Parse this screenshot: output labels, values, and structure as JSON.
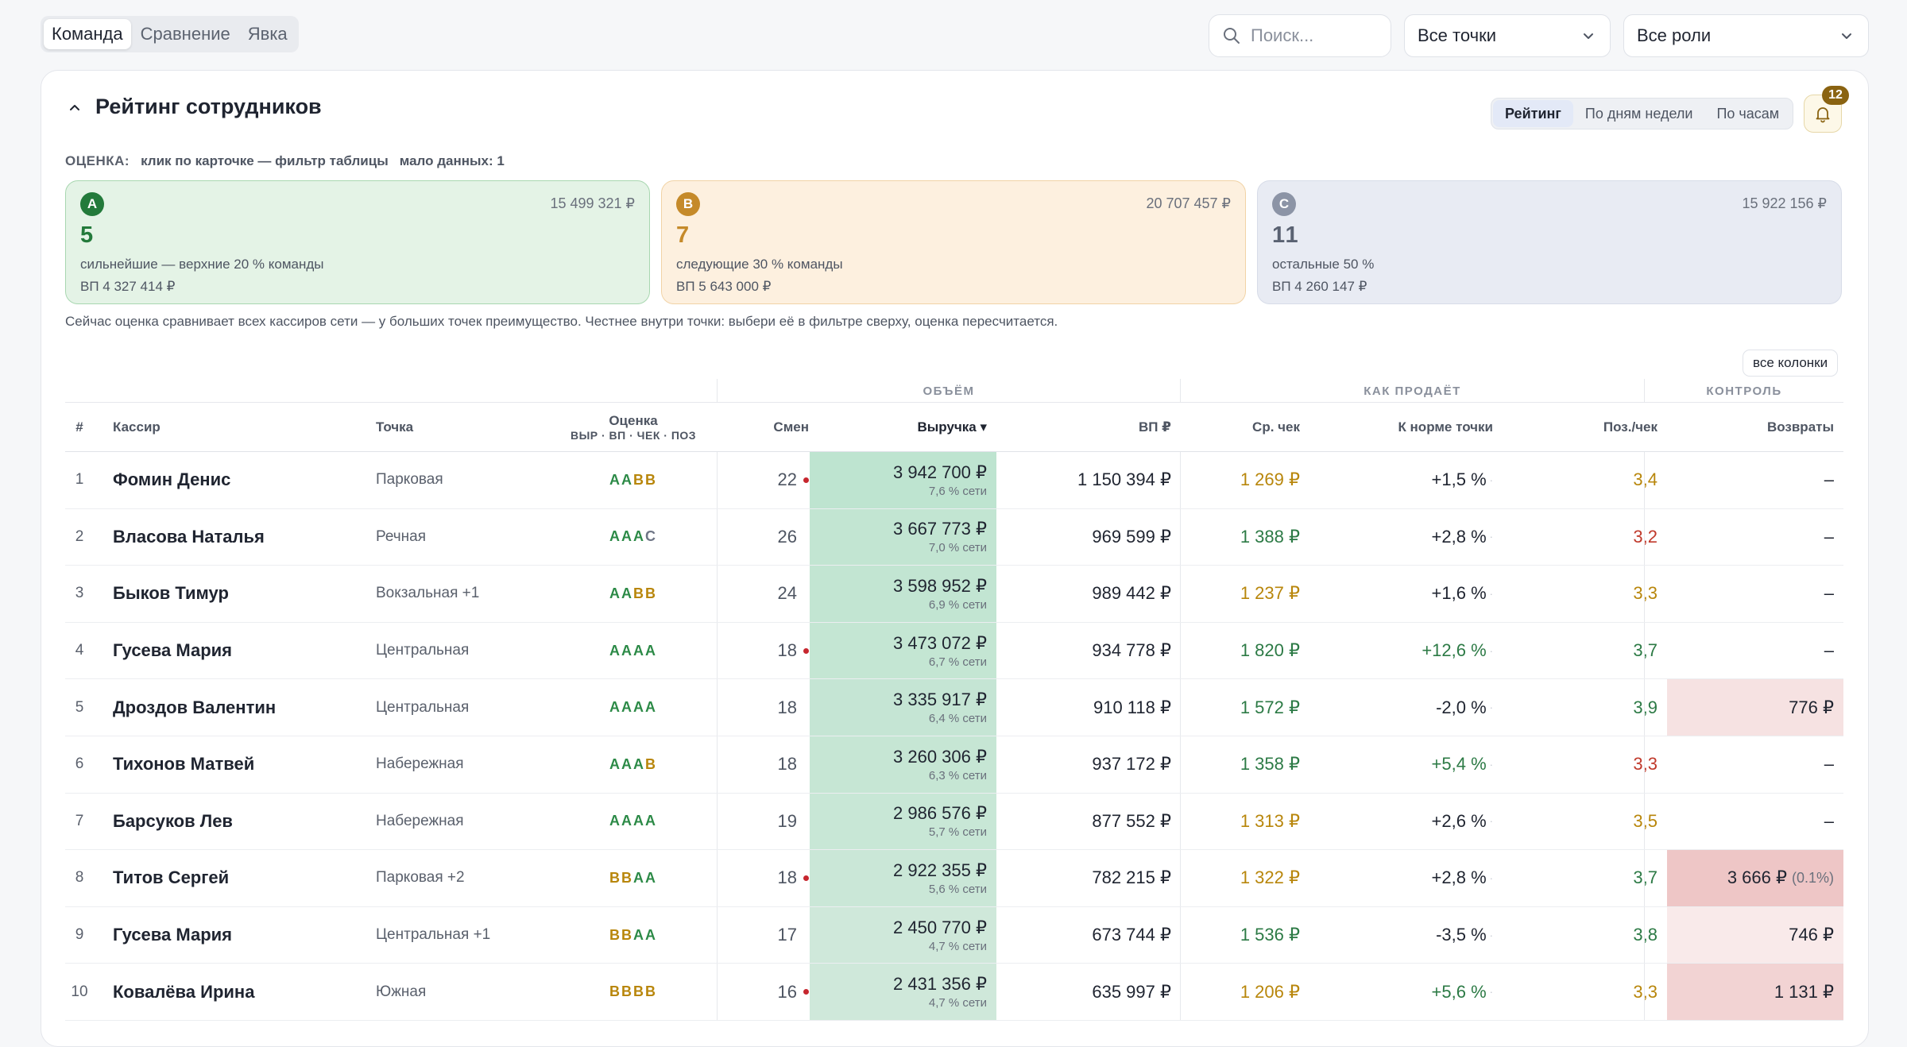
{
  "nav": {
    "tabs": [
      {
        "label": "Команда",
        "active": true
      },
      {
        "label": "Сравнение",
        "active": false
      },
      {
        "label": "Явка",
        "active": false
      }
    ]
  },
  "filters": {
    "search_placeholder": "Поиск...",
    "point_select": "Все точки",
    "role_select": "Все роли"
  },
  "panel": {
    "title": "Рейтинг сотрудников",
    "views": [
      {
        "label": "Рейтинг",
        "active": true
      },
      {
        "label": "По дням недели",
        "active": false
      },
      {
        "label": "По часам",
        "active": false
      }
    ],
    "notifications_count": "12"
  },
  "grading": {
    "label": "ОЦЕНКА:",
    "hint": "клик по карточке — фильтр таблицы",
    "low_data": "мало данных: 1",
    "cards": [
      {
        "letter": "A",
        "sum": "15 499 321 ₽",
        "count": "5",
        "desc": "сильнейшие — верхние 20 % команды",
        "vp": "ВП 4 327 414 ₽"
      },
      {
        "letter": "B",
        "sum": "20 707 457 ₽",
        "count": "7",
        "desc": "следующие 30 % команды",
        "vp": "ВП 5 643 000 ₽"
      },
      {
        "letter": "C",
        "sum": "15 922 156 ₽",
        "count": "11",
        "desc": "остальные 50 %",
        "vp": "ВП 4 260 147 ₽"
      }
    ],
    "note": "Сейчас оценка сравнивает всех кассиров сети — у больших точек преимущество. Честнее внутри точки: выбери её в фильтре сверху, оценка пересчитается."
  },
  "table": {
    "all_columns_label": "все колонки",
    "groups": {
      "volume": "ОБЪЁМ",
      "how_sells": "КАК ПРОДАЁТ",
      "control": "КОНТРОЛЬ"
    },
    "headers": {
      "idx": "#",
      "cashier": "Кассир",
      "point": "Точка",
      "grade": "Оценка",
      "grade_sub": "ВЫР · ВП · ЧЕК · ПОЗ",
      "shifts": "Смен",
      "revenue": "Выручка ▾",
      "vp": "ВП ₽",
      "avg_check": "Ср. чек",
      "to_norm": "К норме точки",
      "pos_per_check": "Поз./чек",
      "returns": "Возвраты"
    },
    "colors": {
      "A": "#2c8a47",
      "B": "#b8860b",
      "C": "#6e7585",
      "good": "#2c7a45",
      "mid": "#b8860b",
      "bad": "#c0392b"
    },
    "rows": [
      {
        "idx": "1",
        "name": "Фомин Денис",
        "point": "Парковая",
        "point_plus": "",
        "grades": [
          "A",
          "A",
          "B",
          "B"
        ],
        "shifts": "22",
        "dot": true,
        "revenue": "3 942 700 ₽",
        "share": "7,6 % сети",
        "rev_level": 1.0,
        "vp": "1 150 394 ₽",
        "avg": "1 269 ₽",
        "avg_tone": "mid",
        "norm": "+1,5 %",
        "norm_tone": "neutral",
        "pos": "3,4",
        "pos_tone": "mid",
        "ret": "–",
        "ret_pct": "",
        "ret_level": 0
      },
      {
        "idx": "2",
        "name": "Власова Наталья",
        "point": "Речная",
        "point_plus": "",
        "grades": [
          "A",
          "A",
          "A",
          "C"
        ],
        "shifts": "26",
        "dot": false,
        "revenue": "3 667 773 ₽",
        "share": "7,0 % сети",
        "rev_level": 0.93,
        "vp": "969 599 ₽",
        "avg": "1 388 ₽",
        "avg_tone": "good",
        "norm": "+2,8 %",
        "norm_tone": "neutral",
        "pos": "3,2",
        "pos_tone": "bad",
        "ret": "–",
        "ret_pct": "",
        "ret_level": 0
      },
      {
        "idx": "3",
        "name": "Быков Тимур",
        "point": "Вокзальная",
        "point_plus": "+1",
        "grades": [
          "A",
          "A",
          "B",
          "B"
        ],
        "shifts": "24",
        "dot": false,
        "revenue": "3 598 952 ₽",
        "share": "6,9 % сети",
        "rev_level": 0.91,
        "vp": "989 442 ₽",
        "avg": "1 237 ₽",
        "avg_tone": "mid",
        "norm": "+1,6 %",
        "norm_tone": "neutral",
        "pos": "3,3",
        "pos_tone": "mid",
        "ret": "–",
        "ret_pct": "",
        "ret_level": 0
      },
      {
        "idx": "4",
        "name": "Гусева Мария",
        "point": "Центральная",
        "point_plus": "",
        "grades": [
          "A",
          "A",
          "A",
          "A"
        ],
        "shifts": "18",
        "dot": true,
        "revenue": "3 473 072 ₽",
        "share": "6,7 % сети",
        "rev_level": 0.88,
        "vp": "934 778 ₽",
        "avg": "1 820 ₽",
        "avg_tone": "good",
        "norm": "+12,6 %",
        "norm_tone": "good",
        "pos": "3,7",
        "pos_tone": "good",
        "ret": "–",
        "ret_pct": "",
        "ret_level": 0
      },
      {
        "idx": "5",
        "name": "Дроздов Валентин",
        "point": "Центральная",
        "point_plus": "",
        "grades": [
          "A",
          "A",
          "A",
          "A"
        ],
        "shifts": "18",
        "dot": false,
        "revenue": "3 335 917 ₽",
        "share": "6,4 % сети",
        "rev_level": 0.85,
        "vp": "910 118 ₽",
        "avg": "1 572 ₽",
        "avg_tone": "good",
        "norm": "-2,0 %",
        "norm_tone": "neutral",
        "pos": "3,9",
        "pos_tone": "good",
        "ret": "776 ₽",
        "ret_pct": "",
        "ret_level": 0.35
      },
      {
        "idx": "6",
        "name": "Тихонов Матвей",
        "point": "Набережная",
        "point_plus": "",
        "grades": [
          "A",
          "A",
          "A",
          "B"
        ],
        "shifts": "18",
        "dot": false,
        "revenue": "3 260 306 ₽",
        "share": "6,3 % сети",
        "rev_level": 0.83,
        "vp": "937 172 ₽",
        "avg": "1 358 ₽",
        "avg_tone": "good",
        "norm": "+5,4 %",
        "norm_tone": "good",
        "pos": "3,3",
        "pos_tone": "bad",
        "ret": "–",
        "ret_pct": "",
        "ret_level": 0
      },
      {
        "idx": "7",
        "name": "Барсуков Лев",
        "point": "Набережная",
        "point_plus": "",
        "grades": [
          "A",
          "A",
          "A",
          "A"
        ],
        "shifts": "19",
        "dot": false,
        "revenue": "2 986 576 ₽",
        "share": "5,7 % сети",
        "rev_level": 0.76,
        "vp": "877 552 ₽",
        "avg": "1 313 ₽",
        "avg_tone": "mid",
        "norm": "+2,6 %",
        "norm_tone": "neutral",
        "pos": "3,5",
        "pos_tone": "mid",
        "ret": "–",
        "ret_pct": "",
        "ret_level": 0
      },
      {
        "idx": "8",
        "name": "Титов Сергей",
        "point": "Парковая",
        "point_plus": "+2",
        "grades": [
          "B",
          "B",
          "A",
          "A"
        ],
        "shifts": "18",
        "dot": true,
        "revenue": "2 922 355 ₽",
        "share": "5,6 % сети",
        "rev_level": 0.74,
        "vp": "782 215 ₽",
        "avg": "1 322 ₽",
        "avg_tone": "mid",
        "norm": "+2,8 %",
        "norm_tone": "neutral",
        "pos": "3,7",
        "pos_tone": "good",
        "ret": "3 666 ₽",
        "ret_pct": "(0.1%)",
        "ret_level": 1.0
      },
      {
        "idx": "9",
        "name": "Гусева Мария",
        "point": "Центральная",
        "point_plus": "+1",
        "grades": [
          "B",
          "B",
          "A",
          "A"
        ],
        "shifts": "17",
        "dot": false,
        "revenue": "2 450 770 ₽",
        "share": "4,7 % сети",
        "rev_level": 0.62,
        "vp": "673 744 ₽",
        "avg": "1 536 ₽",
        "avg_tone": "good",
        "norm": "-3,5 %",
        "norm_tone": "neutral",
        "pos": "3,8",
        "pos_tone": "good",
        "ret": "746 ₽",
        "ret_pct": "",
        "ret_level": 0.15
      },
      {
        "idx": "10",
        "name": "Ковалёва Ирина",
        "point": "Южная",
        "point_plus": "",
        "grades": [
          "B",
          "B",
          "B",
          "B"
        ],
        "shifts": "16",
        "dot": true,
        "revenue": "2 431 356 ₽",
        "share": "4,7 % сети",
        "rev_level": 0.61,
        "vp": "635 997 ₽",
        "avg": "1 206 ₽",
        "avg_tone": "mid",
        "norm": "+5,6 %",
        "norm_tone": "good",
        "pos": "3,3",
        "pos_tone": "mid",
        "ret": "1 131 ₽",
        "ret_pct": "",
        "ret_level": 0.7
      }
    ]
  }
}
